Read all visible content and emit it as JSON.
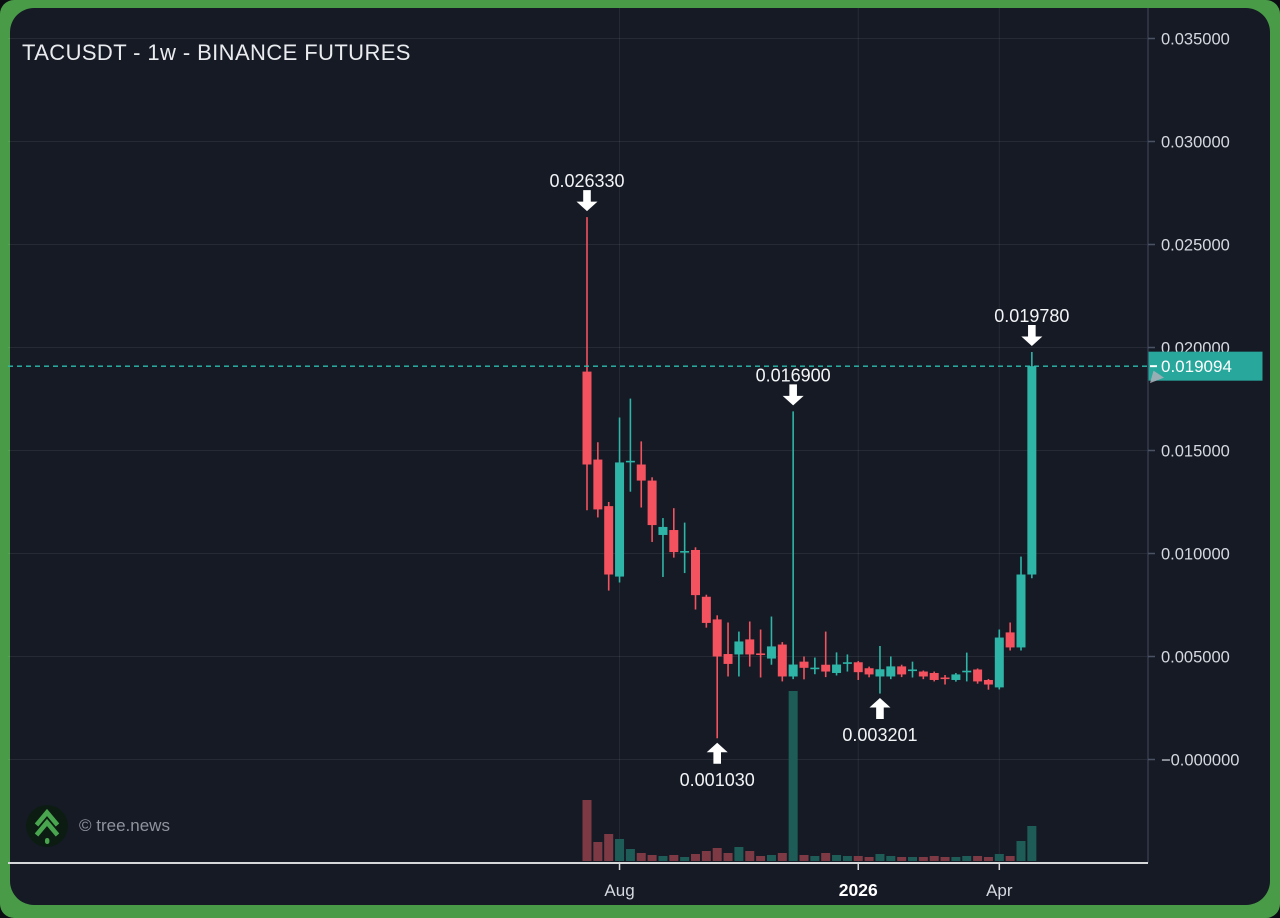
{
  "header": {
    "title": "TACUSDT - 1w - BINANCE FUTURES"
  },
  "footer": {
    "watermark": "© tree.news"
  },
  "colors": {
    "frame_green": "#4a9b48",
    "panel_bg": "#151a25",
    "up": "#2eb5a7",
    "down": "#f4525e",
    "vol_up": "#1e5d57",
    "vol_down": "#7d3a45",
    "grid": "rgba(255,255,255,0.07)",
    "axis_text": "#d5d8de",
    "axis_tick": "#4a5265",
    "price_axis_line": "#343b4c",
    "time_line": "#d6d7d9",
    "dashed": "#2cbcae",
    "accent": "#28a79c",
    "annotation": "#f3f4f6",
    "watermark_text": "#8f939c",
    "logo_green": "#49a64f",
    "logo_bg": "#0c1c13"
  },
  "chart_data": {
    "type": "candlestick",
    "symbol": "TACUSDT",
    "interval": "1w",
    "exchange": "BINANCE FUTURES",
    "legend_position": "none",
    "grid": true,
    "y_axis": [
      {
        "label": "0.035000",
        "price": 0.035
      },
      {
        "label": "0.030000",
        "price": 0.03
      },
      {
        "label": "0.025000",
        "price": 0.025
      },
      {
        "label": "0.020000",
        "price": 0.02
      },
      {
        "label": "0.015000",
        "price": 0.015
      },
      {
        "label": "0.010000",
        "price": 0.01
      },
      {
        "label": "0.005000",
        "price": 0.005
      },
      {
        "label": "−0.000000",
        "price": 0.0
      }
    ],
    "x_axis": [
      {
        "label": "Aug",
        "index": 3,
        "bold": false
      },
      {
        "label": "2026",
        "index": 25,
        "bold": true
      },
      {
        "label": "Apr",
        "index": 38,
        "bold": false
      }
    ],
    "last_price": {
      "label": "0.019094",
      "price": 0.019094
    },
    "annotations": [
      {
        "text": "0.026330",
        "price": 0.02633,
        "index": 0,
        "dir": "down"
      },
      {
        "text": "0.016900",
        "price": 0.0169,
        "index": 19,
        "dir": "down"
      },
      {
        "text": "0.019780",
        "price": 0.01978,
        "index": 41,
        "dir": "down"
      },
      {
        "text": "0.003201",
        "price": 0.003201,
        "index": 27,
        "dir": "up"
      },
      {
        "text": "0.001030",
        "price": 0.00103,
        "index": 12,
        "dir": "up"
      }
    ],
    "candles": [
      [
        0.01883,
        0.02633,
        0.0121,
        0.01432
      ],
      [
        0.01456,
        0.0154,
        0.01175,
        0.01214
      ],
      [
        0.0123,
        0.0125,
        0.0082,
        0.00898
      ],
      [
        0.00888,
        0.0166,
        0.00859,
        0.01442
      ],
      [
        0.01447,
        0.01752,
        0.013,
        0.0145
      ],
      [
        0.01432,
        0.01544,
        0.01223,
        0.01354
      ],
      [
        0.01354,
        0.0137,
        0.01056,
        0.01138
      ],
      [
        0.0109,
        0.01172,
        0.00886,
        0.01129
      ],
      [
        0.01114,
        0.0122,
        0.0098,
        0.01007
      ],
      [
        0.01005,
        0.0115,
        0.00905,
        0.01012
      ],
      [
        0.01017,
        0.0103,
        0.00728,
        0.00798
      ],
      [
        0.0079,
        0.008,
        0.0064,
        0.00663
      ],
      [
        0.0068,
        0.007,
        0.00103,
        0.005
      ],
      [
        0.00512,
        0.00665,
        0.00403,
        0.00464
      ],
      [
        0.0051,
        0.00621,
        0.00403,
        0.00573
      ],
      [
        0.00583,
        0.0067,
        0.00451,
        0.0051
      ],
      [
        0.00515,
        0.00631,
        0.00398,
        0.00509
      ],
      [
        0.0049,
        0.00694,
        0.0046,
        0.00549
      ],
      [
        0.00558,
        0.0057,
        0.00379,
        0.00403
      ],
      [
        0.00403,
        0.0169,
        0.0039,
        0.00461
      ],
      [
        0.00475,
        0.005,
        0.00389,
        0.00445
      ],
      [
        0.00441,
        0.00495,
        0.00414,
        0.00446
      ],
      [
        0.0046,
        0.00621,
        0.004,
        0.00427
      ],
      [
        0.0042,
        0.0052,
        0.00408,
        0.00461
      ],
      [
        0.00468,
        0.0051,
        0.00427,
        0.00472
      ],
      [
        0.00472,
        0.00478,
        0.00386,
        0.00424
      ],
      [
        0.00443,
        0.00451,
        0.00399,
        0.00413
      ],
      [
        0.00403,
        0.00551,
        0.0032,
        0.00438
      ],
      [
        0.00403,
        0.005,
        0.0039,
        0.00452
      ],
      [
        0.00452,
        0.0046,
        0.004,
        0.00413
      ],
      [
        0.00435,
        0.00475,
        0.00398,
        0.00437
      ],
      [
        0.00427,
        0.00432,
        0.0039,
        0.00403
      ],
      [
        0.0042,
        0.00427,
        0.00379,
        0.00386
      ],
      [
        0.00398,
        0.0041,
        0.00364,
        0.00395
      ],
      [
        0.00386,
        0.0042,
        0.00378,
        0.00413
      ],
      [
        0.00428,
        0.00519,
        0.00379,
        0.00431
      ],
      [
        0.00437,
        0.00442,
        0.00368,
        0.00379
      ],
      [
        0.00386,
        0.00391,
        0.00339,
        0.00364
      ],
      [
        0.0035,
        0.00631,
        0.0034,
        0.00592
      ],
      [
        0.00617,
        0.00665,
        0.00529,
        0.00544
      ],
      [
        0.00544,
        0.00985,
        0.00529,
        0.00898
      ],
      [
        0.00898,
        0.01978,
        0.0088,
        0.019094
      ]
    ],
    "volumes": [
      61,
      19,
      27,
      22,
      12,
      8,
      6,
      5,
      6,
      4,
      7,
      10,
      13,
      8,
      14,
      10,
      5,
      6,
      8,
      170,
      6,
      5,
      8,
      6,
      5,
      5,
      4,
      7,
      5,
      4,
      4,
      4,
      5,
      4,
      4,
      5,
      5,
      4,
      7,
      5,
      20,
      35
    ]
  }
}
